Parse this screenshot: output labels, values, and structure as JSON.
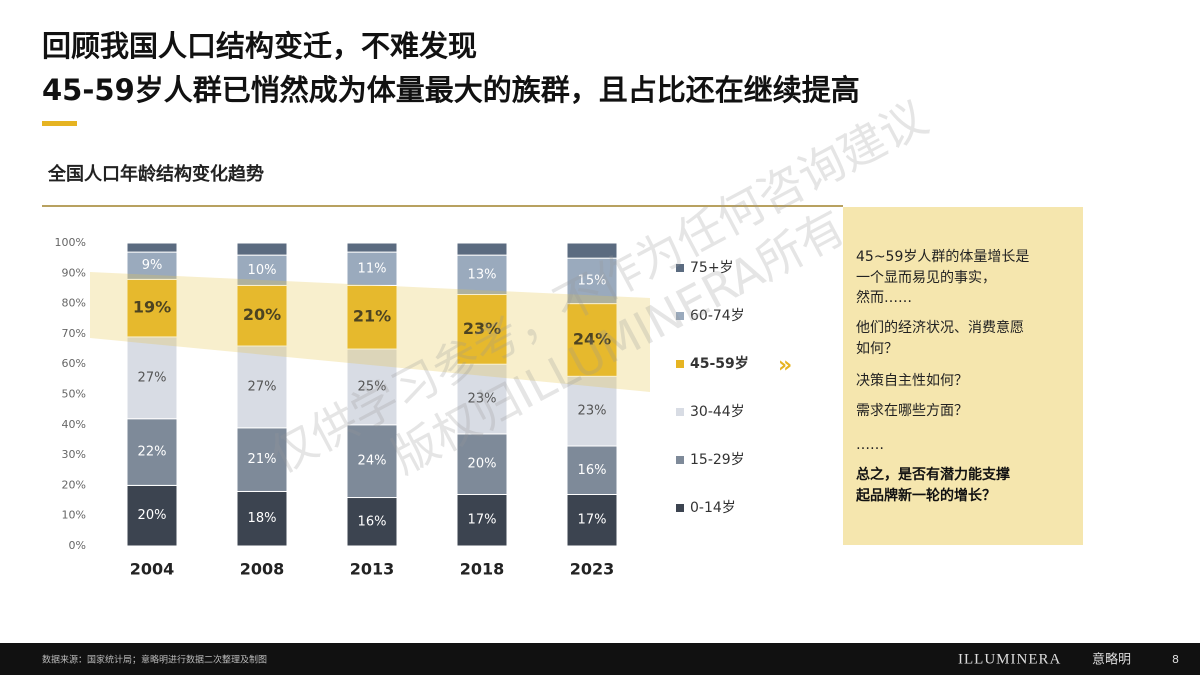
{
  "header": {
    "title_lines": [
      "回顾我国人口结构变迁，不难发现",
      "45-59岁人群已悄然成为体量最大的族群，且占比还在继续提高"
    ]
  },
  "chart_data": {
    "type": "stacked-bar",
    "title": "全国人口年龄结构变化趋势",
    "categories": [
      "2004",
      "2008",
      "2013",
      "2018",
      "2023"
    ],
    "ylim": [
      0,
      100
    ],
    "yticks": [
      {
        "value": 0,
        "label": "0%"
      },
      {
        "value": 10,
        "label": "10%"
      },
      {
        "value": 20,
        "label": "20%"
      },
      {
        "value": 30,
        "label": "30%"
      },
      {
        "value": 40,
        "label": "40%"
      },
      {
        "value": 50,
        "label": "50%"
      },
      {
        "value": 60,
        "label": "60%"
      },
      {
        "value": 70,
        "label": "70%"
      },
      {
        "value": 80,
        "label": "80%"
      },
      {
        "value": 90,
        "label": "90%"
      },
      {
        "value": 100,
        "label": "100%"
      }
    ],
    "series": [
      {
        "name": "0-14岁",
        "color": "#3c4450",
        "values": [
          20,
          18,
          16,
          17,
          17
        ],
        "value_labels": [
          "20%",
          "18%",
          "16%",
          "17%",
          "17%"
        ]
      },
      {
        "name": "15-29岁",
        "color": "#7e8a99",
        "values": [
          22,
          21,
          24,
          20,
          16
        ],
        "value_labels": [
          "22%",
          "21%",
          "24%",
          "20%",
          "16%"
        ]
      },
      {
        "name": "30-44岁",
        "color": "#d8dce4",
        "values": [
          27,
          27,
          25,
          23,
          23
        ],
        "value_labels": [
          "27%",
          "27%",
          "25%",
          "23%",
          "23%"
        ]
      },
      {
        "name": "45-59岁",
        "color": "#e6b422",
        "values": [
          19,
          20,
          21,
          23,
          24
        ],
        "value_labels": [
          "19%",
          "20%",
          "21%",
          "23%",
          "24%"
        ]
      },
      {
        "name": "60-74岁",
        "color": "#9aaabd",
        "values": [
          9,
          10,
          11,
          13,
          15
        ],
        "value_labels": [
          "9%",
          "10%",
          "11%",
          "13%",
          "15%"
        ]
      },
      {
        "name": "75+岁",
        "color": "#5b6b80",
        "values": [
          3,
          4,
          3,
          4,
          5
        ]
      }
    ]
  },
  "sidebar": {
    "lines": [
      "45~59岁人群的体量增长是",
      "一个显而易见的事实，",
      "然而……",
      "他们的经济状况、消费意愿",
      "如何？",
      "决策自主性如何？",
      "需求在哪些方面？",
      "……"
    ],
    "conclusion": [
      "总之，是否有潜力能支撑",
      "起品牌新一轮的增长？"
    ]
  },
  "watermark": [
    "仅供学习参考，不作为任何咨询建议",
    "版权归ILLUMINERA所有"
  ],
  "footer": {
    "source": "数据来源：国家统计局；意略明进行数据二次整理及制图",
    "brand": "ILLUMINERA",
    "brand_cn": "意略明",
    "page": "8"
  }
}
